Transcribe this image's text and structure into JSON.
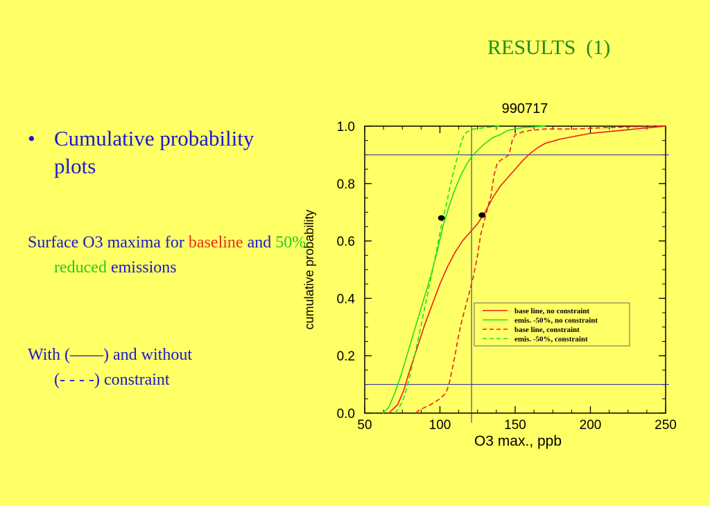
{
  "slide": {
    "title": "RESULTS  (1)",
    "bullet": "Cumulative probability plots",
    "bullet_marker": "•",
    "para1": {
      "prefix": "Surface O3 maxima for ",
      "baseline": "baseline",
      "and": " and ",
      "reduced_pct": "50%",
      "reduced": " reduced",
      "suffix": " emissions"
    },
    "para2": {
      "line1": "With (——) and without",
      "line2": "(- - - -) constraint"
    }
  },
  "chart_data": {
    "type": "line",
    "title": "990717",
    "xlabel": "O3 max., ppb",
    "ylabel": "cumulative probability",
    "xlim": [
      50,
      250
    ],
    "ylim": [
      0,
      1
    ],
    "xticks": [
      50,
      100,
      150,
      200,
      250
    ],
    "yticks": [
      0.0,
      0.2,
      0.4,
      0.6,
      0.8,
      1.0
    ],
    "xtick_labels": [
      "50",
      "100",
      "150",
      "200",
      "250"
    ],
    "ytick_labels": [
      "0.0",
      "0.2",
      "0.4",
      "0.6",
      "0.8",
      "1.0"
    ],
    "legend_position": "lower-right",
    "reference_lines": {
      "horizontal": [
        0.1,
        0.9
      ],
      "vertical": [
        121
      ],
      "color": "#2222aa"
    },
    "markers": [
      {
        "x": 101,
        "y": 0.68
      },
      {
        "x": 128,
        "y": 0.69
      }
    ],
    "series": [
      {
        "name": "base line, no constraint",
        "color": "#e82020",
        "dash": "solid",
        "points": [
          [
            66,
            0
          ],
          [
            72,
            0.03
          ],
          [
            76,
            0.08
          ],
          [
            80,
            0.15
          ],
          [
            85,
            0.23
          ],
          [
            90,
            0.31
          ],
          [
            95,
            0.38
          ],
          [
            100,
            0.45
          ],
          [
            105,
            0.51
          ],
          [
            110,
            0.56
          ],
          [
            115,
            0.6
          ],
          [
            120,
            0.63
          ],
          [
            125,
            0.66
          ],
          [
            130,
            0.7
          ],
          [
            135,
            0.75
          ],
          [
            140,
            0.79
          ],
          [
            145,
            0.82
          ],
          [
            150,
            0.85
          ],
          [
            155,
            0.88
          ],
          [
            160,
            0.905
          ],
          [
            165,
            0.925
          ],
          [
            170,
            0.94
          ],
          [
            180,
            0.955
          ],
          [
            190,
            0.965
          ],
          [
            200,
            0.975
          ],
          [
            210,
            0.98
          ],
          [
            220,
            0.985
          ],
          [
            230,
            0.99
          ],
          [
            240,
            0.995
          ],
          [
            250,
            1.0
          ]
        ]
      },
      {
        "name": "emis. -50%, no constraint",
        "color": "#22dd22",
        "dash": "solid",
        "points": [
          [
            62,
            0
          ],
          [
            66,
            0.02
          ],
          [
            70,
            0.07
          ],
          [
            74,
            0.13
          ],
          [
            78,
            0.2
          ],
          [
            82,
            0.27
          ],
          [
            86,
            0.34
          ],
          [
            90,
            0.41
          ],
          [
            94,
            0.48
          ],
          [
            98,
            0.56
          ],
          [
            102,
            0.65
          ],
          [
            106,
            0.72
          ],
          [
            110,
            0.78
          ],
          [
            114,
            0.83
          ],
          [
            118,
            0.87
          ],
          [
            122,
            0.9
          ],
          [
            126,
            0.92
          ],
          [
            130,
            0.94
          ],
          [
            135,
            0.96
          ],
          [
            140,
            0.97
          ],
          [
            145,
            0.985
          ],
          [
            155,
            0.995
          ],
          [
            170,
            1.0
          ]
        ]
      },
      {
        "name": "base line, constraint",
        "color": "#e82020",
        "dash": "dashed",
        "points": [
          [
            84,
            0
          ],
          [
            86,
            0.01
          ],
          [
            90,
            0.02
          ],
          [
            94,
            0.03
          ],
          [
            97,
            0.04
          ],
          [
            100,
            0.05
          ],
          [
            104,
            0.07
          ],
          [
            106,
            0.1
          ],
          [
            108,
            0.15
          ],
          [
            110,
            0.2
          ],
          [
            112,
            0.26
          ],
          [
            114,
            0.31
          ],
          [
            116,
            0.35
          ],
          [
            119,
            0.41
          ],
          [
            122,
            0.47
          ],
          [
            125,
            0.55
          ],
          [
            127,
            0.62
          ],
          [
            130,
            0.68
          ],
          [
            132,
            0.72
          ],
          [
            134,
            0.76
          ],
          [
            136,
            0.83
          ],
          [
            138,
            0.87
          ],
          [
            140,
            0.88
          ],
          [
            143,
            0.89
          ],
          [
            146,
            0.9
          ],
          [
            148,
            0.95
          ],
          [
            150,
            0.97
          ],
          [
            155,
            0.98
          ],
          [
            160,
            0.985
          ],
          [
            170,
            0.99
          ],
          [
            190,
            0.99
          ],
          [
            210,
            0.995
          ],
          [
            230,
            0.998
          ],
          [
            250,
            1.0
          ]
        ]
      },
      {
        "name": "emis. -50%, constraint",
        "color": "#22dd22",
        "dash": "dashed",
        "points": [
          [
            70,
            0
          ],
          [
            73,
            0.02
          ],
          [
            75,
            0.04
          ],
          [
            77,
            0.07
          ],
          [
            80,
            0.13
          ],
          [
            84,
            0.22
          ],
          [
            88,
            0.32
          ],
          [
            92,
            0.42
          ],
          [
            96,
            0.52
          ],
          [
            99,
            0.6
          ],
          [
            102,
            0.68
          ],
          [
            104,
            0.72
          ],
          [
            106,
            0.77
          ],
          [
            108,
            0.82
          ],
          [
            110,
            0.86
          ],
          [
            112,
            0.9
          ],
          [
            114,
            0.94
          ],
          [
            116,
            0.97
          ],
          [
            118,
            0.98
          ],
          [
            122,
            0.99
          ],
          [
            130,
            0.995
          ],
          [
            140,
            1.0
          ]
        ]
      }
    ]
  }
}
